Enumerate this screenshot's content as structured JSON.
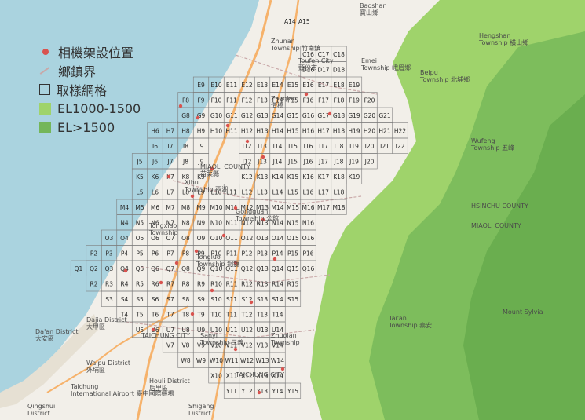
{
  "legend": {
    "camera": "相機架設位置",
    "boundary": "鄉鎮界",
    "grid": "取樣網格",
    "el_mid": "EL1000-1500",
    "el_high": "EL>1500"
  },
  "colors": {
    "sea": "#aad3df",
    "land": "#f3f1ec",
    "forest": "#8cc86a",
    "forest_dark": "#6fb356",
    "grid_line": "#7d7d7d",
    "camera": "#d9534f",
    "highway": "#f6b26b"
  },
  "places": [
    {
      "text": "Baoshan",
      "sub": "寶山鄉"
    },
    {
      "text": "Zhunan",
      "sub": "Township 竹南鎮"
    },
    {
      "text": "Toufen City",
      "sub": "頭份市"
    },
    {
      "text": "Emei",
      "sub": "Township 峨眉鄉"
    },
    {
      "text": "Hengshan",
      "sub": "Township 橫山鄉"
    },
    {
      "text": "Beipu",
      "sub": "Township 北埔鄉"
    },
    {
      "text": "Zaoqiao",
      "sub": "造橋"
    },
    {
      "text": "MIAOLI COUNTY",
      "sub": "苗栗縣"
    },
    {
      "text": "Xihu",
      "sub": "Township 西湖"
    },
    {
      "text": "Gongguan",
      "sub": "Township 公館"
    },
    {
      "text": "Tongxiao",
      "sub": "Township"
    },
    {
      "text": "Wufeng",
      "sub": "Township 五峰"
    },
    {
      "text": "HSINCHU COUNTY",
      "sub": ""
    },
    {
      "text": "MIAOLI COUNTY",
      "sub": ""
    },
    {
      "text": "Tongluo",
      "sub": "Township 銅鑼"
    },
    {
      "text": "Sanyi",
      "sub": "Township 三義"
    },
    {
      "text": "Tai'an",
      "sub": "Township 泰安"
    },
    {
      "text": "Mount Sylvia",
      "sub": ""
    },
    {
      "text": "Dajia District",
      "sub": "大甲區"
    },
    {
      "text": "Da'an District",
      "sub": "大安區"
    },
    {
      "text": "Waipu District",
      "sub": "外埔區"
    },
    {
      "text": "Taichung",
      "sub": "International Airport 臺中國際機場"
    },
    {
      "text": "Houli District",
      "sub": "后里區"
    },
    {
      "text": "TAICHUNG CITY",
      "sub": ""
    },
    {
      "text": "Qingshui",
      "sub": "District"
    },
    {
      "text": "Shigang",
      "sub": "District"
    },
    {
      "text": "Zhuolan",
      "sub": "Township"
    },
    {
      "text": "TAICHUNG CITY",
      "sub": ""
    }
  ],
  "grid_rows": [
    {
      "row": "C",
      "cells": [
        "C16",
        "C17",
        "C18"
      ]
    },
    {
      "row": "D",
      "cells": [
        "D16",
        "D17",
        "D18"
      ]
    },
    {
      "row": "E",
      "cells": [
        "E9",
        "E10",
        "E11",
        "E12",
        "E13",
        "E14",
        "E15",
        "E16",
        "E17",
        "E18",
        "E19"
      ]
    },
    {
      "row": "F",
      "cells": [
        "F8",
        "F9",
        "F10",
        "F11",
        "F12",
        "F13",
        "F14",
        "F15",
        "F16",
        "F17",
        "F18",
        "F19",
        "F20"
      ]
    },
    {
      "row": "G",
      "cells": [
        "G8",
        "G9",
        "G10",
        "G11",
        "G12",
        "G13",
        "G14",
        "G15",
        "G16",
        "G17",
        "G18",
        "G19",
        "G20",
        "G21"
      ]
    },
    {
      "row": "H",
      "cells": [
        "H6",
        "H7",
        "H8",
        "H9",
        "H10",
        "H11",
        "H12",
        "H13",
        "H14",
        "H15",
        "H16",
        "H17",
        "H18",
        "H19",
        "H20",
        "H21",
        "H22"
      ]
    },
    {
      "row": "I",
      "cells": [
        "I6",
        "I7",
        "I8",
        "I9",
        "I12",
        "I13",
        "I14",
        "I15",
        "I16",
        "I17",
        "I18",
        "I19",
        "I20",
        "I21",
        "I22"
      ]
    },
    {
      "row": "J",
      "cells": [
        "J5",
        "J6",
        "J7",
        "J8",
        "J9",
        "J12",
        "J13",
        "J14",
        "J15",
        "J16",
        "J17",
        "J18",
        "J19",
        "J20"
      ]
    },
    {
      "row": "K",
      "cells": [
        "K5",
        "K6",
        "K7",
        "K8",
        "K9",
        "K12",
        "K13",
        "K14",
        "K15",
        "K16",
        "K17",
        "K18",
        "K19"
      ]
    },
    {
      "row": "L",
      "cells": [
        "L5",
        "L6",
        "L7",
        "L8",
        "L9",
        "L10",
        "L11",
        "L12",
        "L13",
        "L14",
        "L15",
        "L16",
        "L17",
        "L18"
      ]
    },
    {
      "row": "M",
      "cells": [
        "M4",
        "M5",
        "M6",
        "M7",
        "M8",
        "M9",
        "M10",
        "M11",
        "M12",
        "M13",
        "M14",
        "M15",
        "M16",
        "M17",
        "M18"
      ]
    },
    {
      "row": "N",
      "cells": [
        "N4",
        "N5",
        "N6",
        "N7",
        "N8",
        "N9",
        "N10",
        "N11",
        "N12",
        "N13",
        "N14",
        "N15",
        "N16"
      ]
    },
    {
      "row": "O",
      "cells": [
        "O3",
        "O4",
        "O5",
        "O6",
        "O7",
        "O8",
        "O9",
        "O10",
        "O11",
        "O12",
        "O13",
        "O14",
        "O15",
        "O16"
      ]
    },
    {
      "row": "P",
      "cells": [
        "P2",
        "P3",
        "P4",
        "P5",
        "P6",
        "P7",
        "P8",
        "P9",
        "P10",
        "P11",
        "P12",
        "P13",
        "P14",
        "P15",
        "P16"
      ]
    },
    {
      "row": "Q",
      "cells": [
        "Q1",
        "Q2",
        "Q3",
        "Q4",
        "Q5",
        "Q6",
        "Q7",
        "Q8",
        "Q9",
        "Q10",
        "Q11",
        "Q12",
        "Q13",
        "Q14",
        "Q15",
        "Q16"
      ]
    },
    {
      "row": "R",
      "cells": [
        "R2",
        "R3",
        "R4",
        "R5",
        "R6",
        "R7",
        "R8",
        "R9",
        "R10",
        "R11",
        "R12",
        "R13",
        "R14",
        "R15"
      ]
    },
    {
      "row": "S",
      "cells": [
        "S3",
        "S4",
        "S5",
        "S6",
        "S7",
        "S8",
        "S9",
        "S10",
        "S11",
        "S12",
        "S13",
        "S14",
        "S15"
      ]
    },
    {
      "row": "T",
      "cells": [
        "T4",
        "T5",
        "T6",
        "T7",
        "T8",
        "T9",
        "T10",
        "T11",
        "T12",
        "T13",
        "T14"
      ]
    },
    {
      "row": "U",
      "cells": [
        "U5",
        "U6",
        "U7",
        "U8",
        "U9",
        "U10",
        "U11",
        "U12",
        "U13",
        "U14"
      ]
    },
    {
      "row": "V",
      "cells": [
        "V7",
        "V8",
        "V9",
        "V10",
        "V11",
        "V12",
        "V13",
        "V14"
      ]
    },
    {
      "row": "W",
      "cells": [
        "W8",
        "W9",
        "W10",
        "W11",
        "W12",
        "W13",
        "W14"
      ]
    },
    {
      "row": "X",
      "cells": [
        "X10",
        "X11",
        "X12",
        "X13",
        "X14"
      ]
    },
    {
      "row": "Y",
      "cells": [
        "Y11",
        "Y12",
        "Y13",
        "Y14",
        "Y15"
      ]
    }
  ],
  "top_labels": [
    "A14",
    "A15"
  ]
}
